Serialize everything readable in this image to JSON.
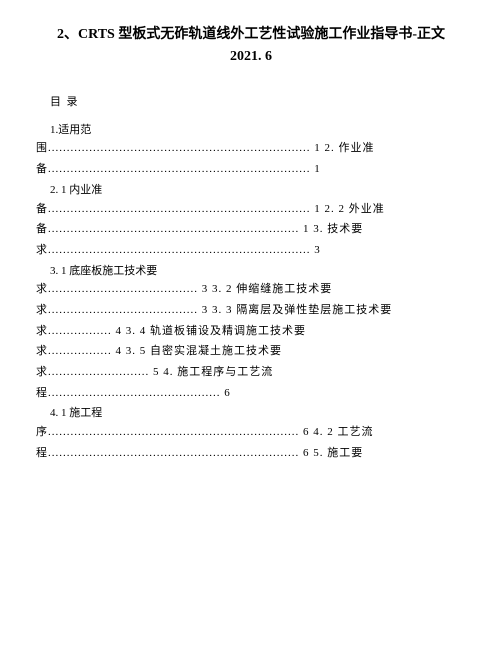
{
  "title": {
    "line1": "2、CRTS 型板式无砟轨道线外工艺性试验施工作业指导书-正文",
    "line2": "2021. 6"
  },
  "toc_header": "目  录",
  "entries": [
    {
      "l1": "1.适用范",
      "l2": "围...................................................................... 1 2. 作业准"
    },
    {
      "l1": "",
      "l2": "备...................................................................... 1"
    },
    {
      "l1": "2. 1 内业准",
      "l2": "备...................................................................... 1 2. 2 外业准"
    },
    {
      "l1": "",
      "l2": "备................................................................... 1 3. 技术要"
    },
    {
      "l1": "",
      "l2": "求...................................................................... 3"
    },
    {
      "l1": "3. 1 底座板施工技术要",
      "l2": "求........................................ 3 3. 2 伸缩缝施工技术要"
    },
    {
      "l1": "",
      "l2": "求........................................ 3 3. 3 隔离层及弹性垫层施工技术要"
    },
    {
      "l1": "",
      "l2": "求................. 4 3. 4 轨道板铺设及精调施工技术要"
    },
    {
      "l1": "",
      "l2": "求................. 4 3. 5 自密实混凝土施工技术要"
    },
    {
      "l1": "",
      "l2": "求........................... 5 4. 施工程序与工艺流"
    },
    {
      "l1": "",
      "l2": "程.............................................. 6"
    },
    {
      "l1": "4. 1 施工程",
      "l2": "序................................................................... 6 4. 2 工艺流"
    },
    {
      "l1": "",
      "l2": "程................................................................... 6 5. 施工要"
    }
  ]
}
